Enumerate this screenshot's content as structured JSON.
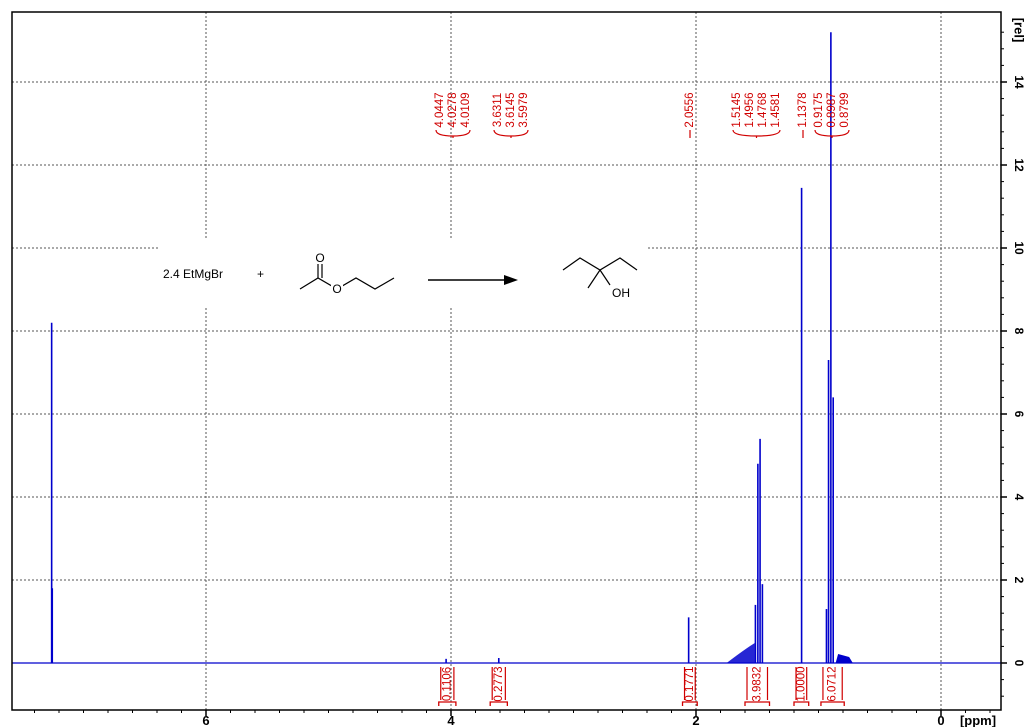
{
  "chart_data": {
    "type": "line",
    "title": "",
    "xlabel": "[ppm]",
    "ylabel": "[rel]",
    "x_range": [
      -0.7,
      7.9
    ],
    "x_reversed": true,
    "ylim": [
      -0.8,
      16.0
    ],
    "x_ticks": [
      6,
      4,
      2,
      0
    ],
    "x_tick_labels": [
      "6",
      "4",
      "2",
      "0"
    ],
    "y_ticks": [
      0,
      2,
      4,
      6,
      8,
      10,
      12,
      14
    ],
    "y_tick_labels": [
      "0",
      "2",
      "4",
      "6",
      "8",
      "10",
      "12",
      "14"
    ],
    "grid": true,
    "peaks": [
      {
        "ppm": 7.26,
        "intensity": 8.2
      },
      {
        "ppm": 7.255,
        "intensity": 1.8
      },
      {
        "ppm": 4.04,
        "intensity": 0.1
      },
      {
        "ppm": 3.61,
        "intensity": 0.12
      },
      {
        "ppm": 2.06,
        "intensity": 1.1
      },
      {
        "ppm": 1.515,
        "intensity": 1.4
      },
      {
        "ppm": 1.495,
        "intensity": 4.8
      },
      {
        "ppm": 1.477,
        "intensity": 5.4
      },
      {
        "ppm": 1.458,
        "intensity": 1.9
      },
      {
        "ppm": 1.138,
        "intensity": 11.45
      },
      {
        "ppm": 0.935,
        "intensity": 1.3
      },
      {
        "ppm": 0.918,
        "intensity": 7.3
      },
      {
        "ppm": 0.899,
        "intensity": 15.2
      },
      {
        "ppm": 0.88,
        "intensity": 6.4
      }
    ],
    "peak_label_groups": [
      {
        "labels": [
          "4.0447",
          "4.0278",
          "4.0109"
        ]
      },
      {
        "labels": [
          "3.6311",
          "3.6145",
          "3.5979"
        ]
      },
      {
        "labels": [
          "2.0556"
        ]
      },
      {
        "labels": [
          "1.5145",
          "1.4956",
          "1.4768",
          "1.4581"
        ]
      },
      {
        "labels": [
          "1.1378"
        ]
      },
      {
        "labels": [
          "0.9175",
          "0.8987",
          "0.8799"
        ]
      }
    ],
    "integrals": [
      {
        "label": "0.1106",
        "from": 4.1,
        "to": 3.96
      },
      {
        "label": "0.2773",
        "from": 3.68,
        "to": 3.54
      },
      {
        "label": "0.1771",
        "from": 2.11,
        "to": 1.99
      },
      {
        "label": "3.9832",
        "from": 1.6,
        "to": 1.4
      },
      {
        "label": "1.0000",
        "from": 1.2,
        "to": 1.08
      },
      {
        "label": "6.0712",
        "from": 0.98,
        "to": 0.79
      }
    ]
  },
  "scheme": {
    "reagent": "2.4 EtMgBr",
    "plus": "+",
    "carbonyl_o": "O",
    "ester_o": "O",
    "product_oh": "OH"
  },
  "colors": {
    "spectrum": "#0000cc",
    "annotation": "#d00000",
    "grid": "#555555",
    "axis": "#000000"
  }
}
